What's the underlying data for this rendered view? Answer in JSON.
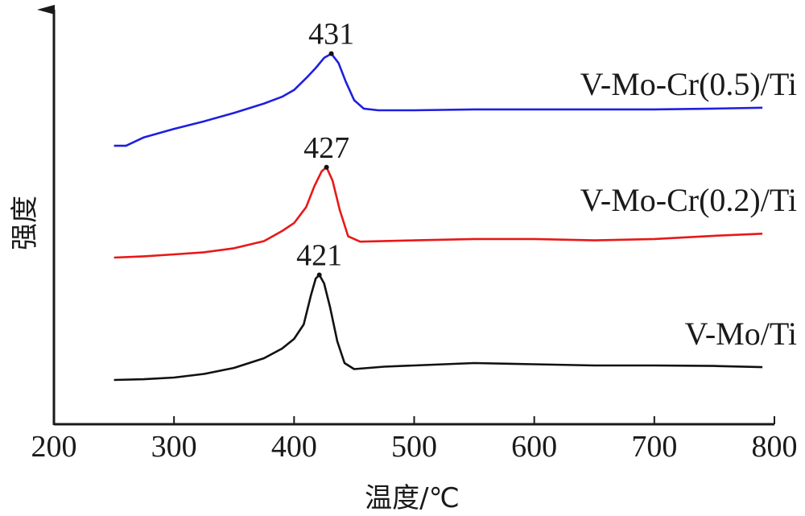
{
  "chart_data": {
    "type": "line",
    "xlabel": "温度/℃",
    "ylabel": "强度",
    "xlim": [
      200,
      800
    ],
    "xticks": [
      200,
      300,
      400,
      500,
      600,
      700,
      800
    ],
    "grid": false,
    "y_ticks_shown": false,
    "series": [
      {
        "name": "V-Mo-Cr(0.5)/Ti",
        "color": "#1f1fe0",
        "peak": 431,
        "peak_label": "431",
        "points": [
          [
            250,
            0.09
          ],
          [
            260,
            0.09
          ],
          [
            275,
            0.14
          ],
          [
            300,
            0.19
          ],
          [
            325,
            0.235
          ],
          [
            350,
            0.285
          ],
          [
            375,
            0.34
          ],
          [
            390,
            0.38
          ],
          [
            400,
            0.42
          ],
          [
            410,
            0.49
          ],
          [
            418,
            0.55
          ],
          [
            425,
            0.61
          ],
          [
            431,
            0.635
          ],
          [
            437,
            0.58
          ],
          [
            443,
            0.47
          ],
          [
            450,
            0.36
          ],
          [
            458,
            0.31
          ],
          [
            470,
            0.3
          ],
          [
            500,
            0.3
          ],
          [
            550,
            0.305
          ],
          [
            600,
            0.305
          ],
          [
            650,
            0.305
          ],
          [
            700,
            0.305
          ],
          [
            750,
            0.31
          ],
          [
            790,
            0.315
          ]
        ]
      },
      {
        "name": "V-Mo-Cr(0.2)/Ti",
        "color": "#e81818",
        "peak": 427,
        "peak_label": "427",
        "points": [
          [
            250,
            0.0
          ],
          [
            275,
            0.005
          ],
          [
            300,
            0.012
          ],
          [
            325,
            0.02
          ],
          [
            350,
            0.035
          ],
          [
            375,
            0.062
          ],
          [
            390,
            0.1
          ],
          [
            400,
            0.13
          ],
          [
            410,
            0.19
          ],
          [
            417,
            0.27
          ],
          [
            423,
            0.325
          ],
          [
            427,
            0.34
          ],
          [
            432,
            0.29
          ],
          [
            438,
            0.18
          ],
          [
            445,
            0.08
          ],
          [
            455,
            0.06
          ],
          [
            500,
            0.065
          ],
          [
            550,
            0.07
          ],
          [
            600,
            0.07
          ],
          [
            650,
            0.065
          ],
          [
            700,
            0.07
          ],
          [
            750,
            0.082
          ],
          [
            790,
            0.09
          ]
        ]
      },
      {
        "name": "V-Mo/Ti",
        "color": "#111111",
        "peak": 421,
        "peak_label": "421",
        "points": [
          [
            250,
            0.0
          ],
          [
            275,
            0.003
          ],
          [
            300,
            0.01
          ],
          [
            325,
            0.025
          ],
          [
            350,
            0.05
          ],
          [
            375,
            0.09
          ],
          [
            390,
            0.13
          ],
          [
            400,
            0.17
          ],
          [
            408,
            0.23
          ],
          [
            414,
            0.35
          ],
          [
            418,
            0.42
          ],
          [
            421,
            0.435
          ],
          [
            425,
            0.4
          ],
          [
            430,
            0.3
          ],
          [
            436,
            0.16
          ],
          [
            442,
            0.07
          ],
          [
            450,
            0.045
          ],
          [
            475,
            0.055
          ],
          [
            500,
            0.06
          ],
          [
            550,
            0.07
          ],
          [
            600,
            0.065
          ],
          [
            650,
            0.06
          ],
          [
            700,
            0.06
          ],
          [
            750,
            0.058
          ],
          [
            790,
            0.053
          ]
        ]
      }
    ]
  }
}
